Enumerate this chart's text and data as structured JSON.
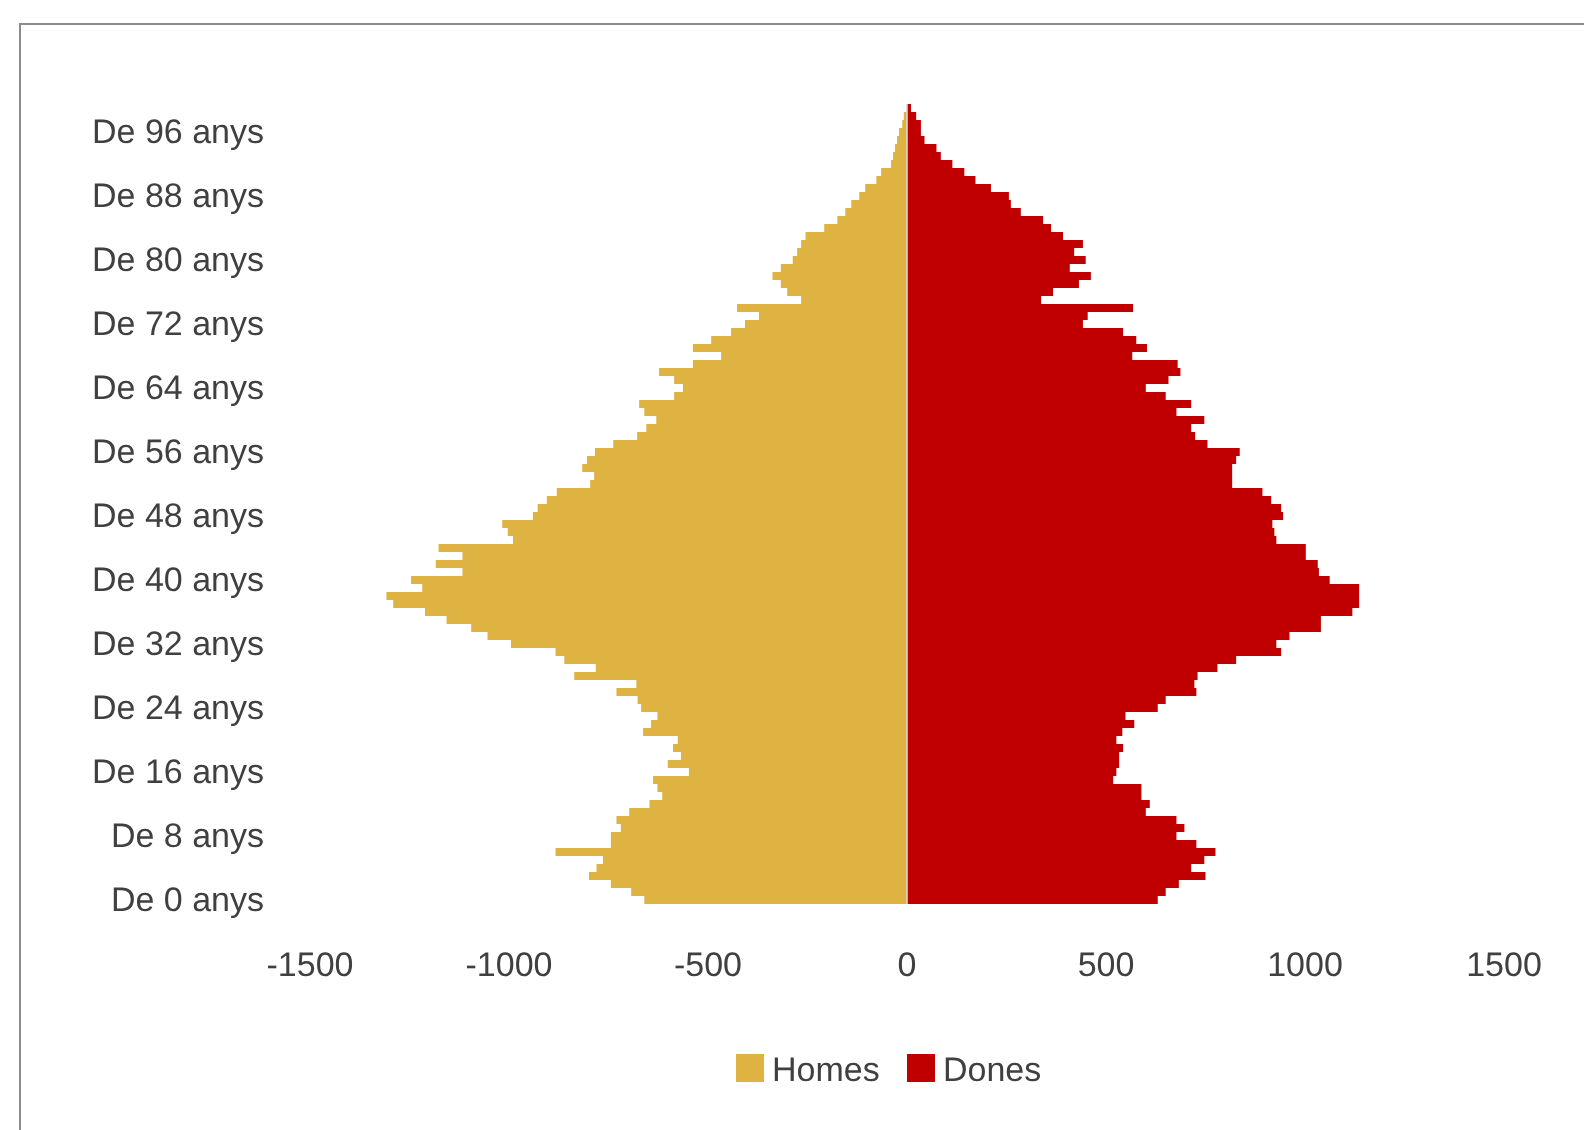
{
  "chart_data": {
    "type": "bar",
    "orientation": "horizontal",
    "stacked": true,
    "categories": [
      null,
      null,
      null,
      "De 96 anys",
      null,
      null,
      null,
      null,
      null,
      null,
      null,
      "De 88 anys",
      null,
      null,
      null,
      null,
      null,
      null,
      null,
      "De 80 anys",
      null,
      null,
      null,
      null,
      null,
      null,
      null,
      "De 72 anys",
      null,
      null,
      null,
      null,
      null,
      null,
      null,
      "De 64 anys",
      null,
      null,
      null,
      null,
      null,
      null,
      null,
      "De 56 anys",
      null,
      null,
      null,
      null,
      null,
      null,
      null,
      "De 48 anys",
      null,
      null,
      null,
      null,
      null,
      null,
      null,
      "De 40 anys",
      null,
      null,
      null,
      null,
      null,
      null,
      null,
      "De 32 anys",
      null,
      null,
      null,
      null,
      null,
      null,
      null,
      "De 24 anys",
      null,
      null,
      null,
      null,
      null,
      null,
      null,
      "De 16 anys",
      null,
      null,
      null,
      null,
      null,
      null,
      null,
      "De 8 anys",
      null,
      null,
      null,
      null,
      null,
      null,
      null,
      "De 0 anys"
    ],
    "series": [
      {
        "name": "Homes",
        "color": "#dfb341",
        "values": [
          null,
          -8,
          -12,
          -20,
          -25,
          -30,
          -35,
          -40,
          -65,
          -77,
          -105,
          -120,
          -140,
          -155,
          -175,
          -208,
          -255,
          -266,
          -276,
          -287,
          -317,
          -338,
          -317,
          -301,
          -266,
          -427,
          -372,
          -407,
          -442,
          -492,
          -538,
          -467,
          -538,
          -623,
          -585,
          -563,
          -585,
          -673,
          -660,
          -630,
          -655,
          -678,
          -738,
          -784,
          -804,
          -816,
          -786,
          -796,
          -880,
          -905,
          -928,
          -940,
          -1017,
          -1003,
          -990,
          -1177,
          -1117,
          -1184,
          -1117,
          -1246,
          -1218,
          -1308,
          -1291,
          -1211,
          -1157,
          -1095,
          -1054,
          -995,
          -883,
          -861,
          -782,
          -836,
          -680,
          -730,
          -677,
          -668,
          -627,
          -643,
          -663,
          -576,
          -588,
          -568,
          -601,
          -548,
          -638,
          -627,
          -615,
          -647,
          -698,
          -730,
          -719,
          -744,
          -744,
          -883,
          -764,
          -780,
          -799,
          -744,
          -693,
          -660
        ]
      },
      {
        "name": "Dones",
        "color": "#c00000",
        "values": [
          10,
          23,
          35,
          35,
          44,
          74,
          85,
          114,
          144,
          172,
          211,
          256,
          261,
          286,
          342,
          362,
          392,
          442,
          420,
          449,
          409,
          462,
          432,
          367,
          337,
          568,
          454,
          442,
          543,
          576,
          603,
          566,
          680,
          687,
          657,
          600,
          650,
          714,
          677,
          747,
          714,
          724,
          755,
          836,
          827,
          817,
          817,
          817,
          893,
          915,
          940,
          945,
          918,
          923,
          928,
          1002,
          1002,
          1032,
          1035,
          1062,
          1136,
          1136,
          1136,
          1119,
          1040,
          1040,
          961,
          928,
          940,
          827,
          780,
          730,
          722,
          727,
          650,
          630,
          549,
          571,
          541,
          526,
          543,
          533,
          533,
          526,
          518,
          589,
          589,
          610,
          600,
          677,
          697,
          677,
          727,
          775,
          747,
          714,
          750,
          683,
          650,
          630
        ]
      }
    ],
    "xlim": [
      -1500,
      1500
    ],
    "xticks": [
      -1500,
      -1000,
      -500,
      0,
      500,
      1000,
      1500
    ],
    "legend": "bottom"
  }
}
